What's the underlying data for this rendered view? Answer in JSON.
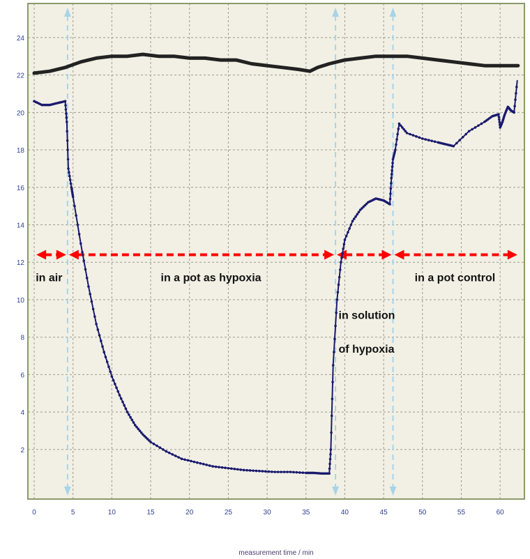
{
  "chart_data": {
    "type": "line",
    "xlabel": "measurement time / min",
    "ylabel": "",
    "xlim": [
      0,
      62.5
    ],
    "ylim": [
      -0.2,
      25
    ],
    "xticks": [
      0,
      5,
      10,
      15,
      20,
      25,
      30,
      35,
      40,
      45,
      50,
      55,
      60
    ],
    "yticks": [
      2,
      4,
      6,
      8,
      10,
      12,
      14,
      16,
      18,
      20,
      22,
      24
    ],
    "grid": true,
    "colors": {
      "plot_background": "#f2f0e4",
      "grid": "#9a9a90",
      "frame": "#8a9a6a",
      "series_oxygen": "#1a1a6e",
      "series_temperature": "#222222",
      "arrows": "#ff0000",
      "markers": "#a8d4e8"
    },
    "series": [
      {
        "x": [
          0,
          1,
          2,
          3,
          4,
          4.2,
          4.4,
          4.8,
          5,
          6,
          7,
          8,
          9,
          10,
          11,
          12,
          13,
          14,
          15,
          17,
          19,
          21,
          23,
          25,
          27,
          29,
          31,
          33,
          35,
          36,
          37,
          38,
          38.2,
          38.5,
          39,
          39.5,
          40,
          41,
          42,
          43,
          44,
          45,
          45.8,
          46,
          46.2,
          46.5,
          47,
          48,
          50,
          52,
          53,
          54,
          56,
          58,
          59,
          59.8,
          60,
          60.3,
          60.6,
          61,
          61.4,
          61.8,
          62.2
        ],
        "y": [
          20.6,
          20.4,
          20.4,
          20.5,
          20.6,
          19.5,
          17,
          16,
          15.5,
          13,
          10.7,
          8.7,
          7.2,
          5.9,
          4.9,
          4.0,
          3.3,
          2.8,
          2.4,
          1.9,
          1.5,
          1.3,
          1.1,
          1.0,
          0.9,
          0.85,
          0.8,
          0.8,
          0.75,
          0.75,
          0.72,
          0.72,
          2.0,
          6.5,
          10,
          12,
          13.2,
          14.2,
          14.8,
          15.2,
          15.4,
          15.3,
          15.1,
          16.5,
          17.5,
          18.0,
          19.4,
          18.9,
          18.6,
          18.4,
          18.3,
          18.2,
          19.0,
          19.5,
          19.8,
          19.9,
          19.2,
          19.5,
          19.9,
          20.3,
          20.1,
          20.0,
          21.7
        ]
      },
      {
        "x": [
          0,
          2,
          4,
          6,
          8,
          10,
          12,
          14,
          16,
          18,
          20,
          22,
          24,
          26,
          28,
          30,
          32,
          34,
          35.5,
          36.5,
          38,
          40,
          42,
          44,
          46,
          48,
          50,
          52,
          54,
          56,
          58,
          60,
          62.3
        ],
        "y": [
          22.1,
          22.2,
          22.4,
          22.7,
          22.9,
          23.0,
          23.0,
          23.1,
          23.0,
          23.0,
          22.9,
          22.9,
          22.8,
          22.8,
          22.6,
          22.5,
          22.4,
          22.3,
          22.2,
          22.4,
          22.6,
          22.8,
          22.9,
          23.0,
          23.0,
          23.0,
          22.9,
          22.8,
          22.7,
          22.6,
          22.5,
          22.5,
          22.5
        ]
      }
    ],
    "event_markers_x": [
      4.3,
      38.8,
      46.2
    ],
    "annotations": [
      {
        "text": "in air",
        "x": 0.2,
        "y": 11.2
      },
      {
        "text": "in a pot as hypoxia",
        "x": 16.3,
        "y": 11.2
      },
      {
        "text": "in solution",
        "x": 39.2,
        "y": 9.2
      },
      {
        "text": "of hypoxia",
        "x": 39.2,
        "y": 7.4
      },
      {
        "text": "in a pot control",
        "x": 49.0,
        "y": 11.2
      }
    ],
    "arrows": [
      {
        "x1": 0.1,
        "x2": 4.3,
        "y": 12.4
      },
      {
        "x1": 4.3,
        "x2": 38.8,
        "y": 12.4
      },
      {
        "x1": 38.8,
        "x2": 46.2,
        "y": 12.4
      },
      {
        "x1": 46.2,
        "x2": 62.4,
        "y": 12.4
      }
    ]
  }
}
